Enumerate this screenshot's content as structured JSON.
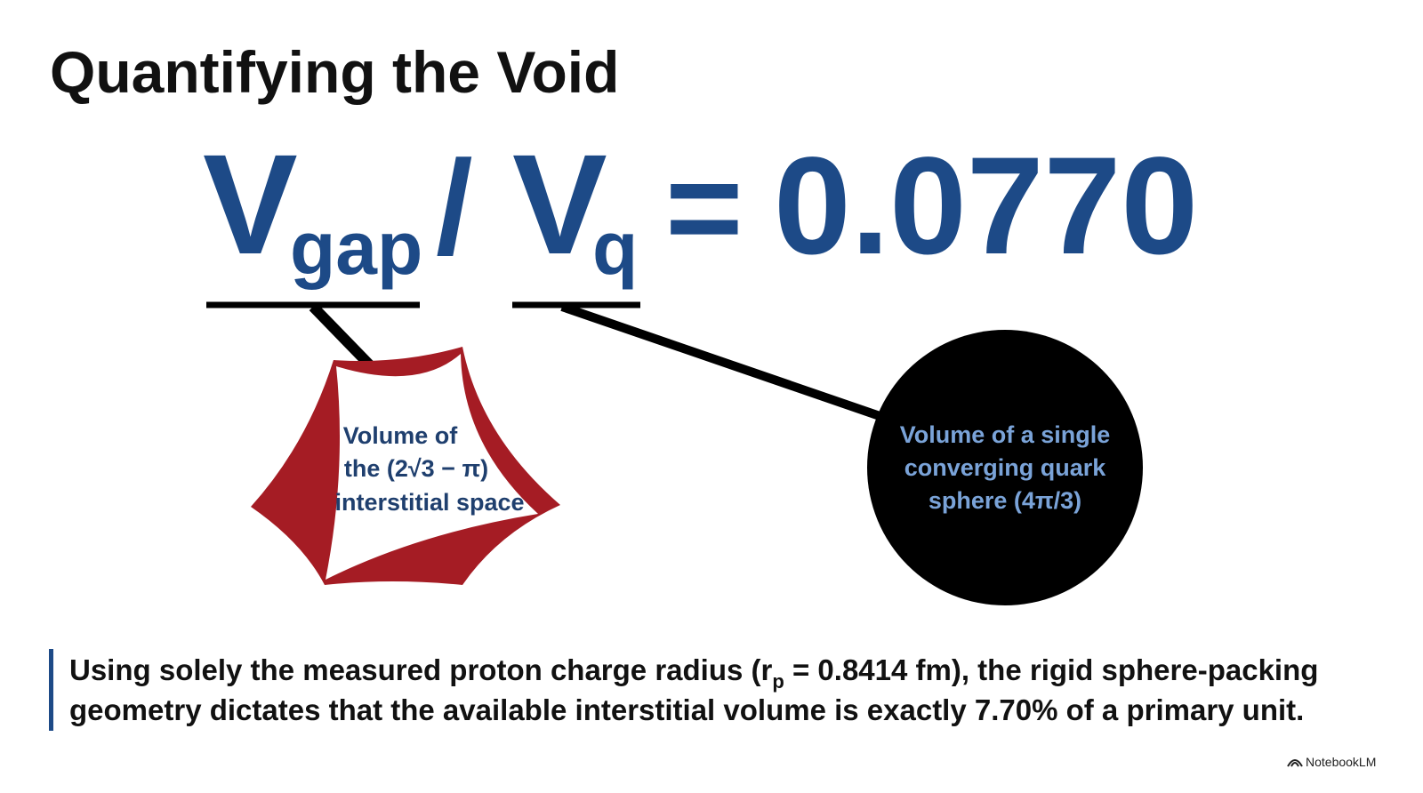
{
  "title": "Quantifying the Void",
  "equation": {
    "numerator_symbol": "V",
    "numerator_subscript": "gap",
    "divider": "/",
    "denominator_symbol": "V",
    "denominator_subscript": "q",
    "equals": "=",
    "result": "0.0770"
  },
  "callouts": [
    {
      "lines": [
        "Volume of",
        "the (2√3 − π)",
        "interstitial space"
      ]
    },
    {
      "lines": [
        "Volume of a single",
        "converging quark",
        "sphere (4π/3)"
      ]
    }
  ],
  "footer": {
    "line1": {
      "before": "Using solely the measured proton charge radius (r",
      "subscript": "p",
      "after": " = 0.8414 fm), the rigid sphere-packing"
    },
    "line2": "geometry dictates that the available interstitial volume is exactly 7.70% of a primary unit."
  },
  "watermark": "NotebookLM"
}
